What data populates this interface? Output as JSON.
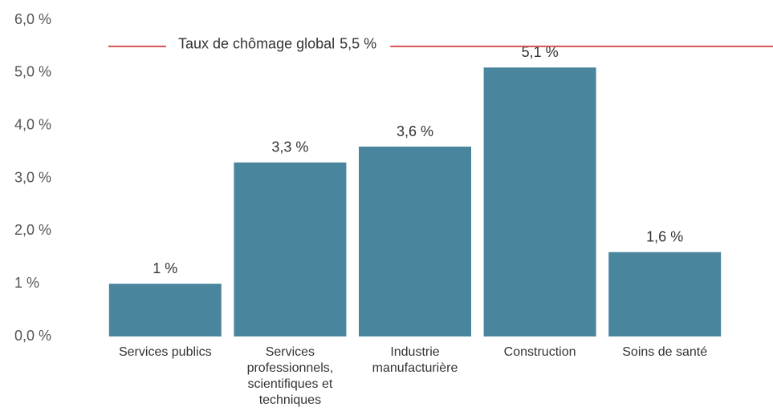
{
  "chart_data": {
    "type": "bar",
    "categories": [
      "Services publics",
      "Services professionnels, scientifiques et techniques",
      "Industrie manufacturière",
      "Construction",
      "Soins de santé"
    ],
    "values": [
      1,
      3.3,
      3.6,
      5.1,
      1.6
    ],
    "value_labels": [
      "1 %",
      "3,3 %",
      "3,6 %",
      "5,1 %",
      "1,6 %"
    ],
    "color": "#4a859e",
    "ylim": [
      0,
      6
    ],
    "yticks": [
      {
        "value": 0,
        "label": "0,0 %"
      },
      {
        "value": 1,
        "label": "1 %"
      },
      {
        "value": 2,
        "label": "2,0 %"
      },
      {
        "value": 3,
        "label": "3,0 %"
      },
      {
        "value": 4,
        "label": "4,0 %"
      },
      {
        "value": 5,
        "label": "5,0 %"
      },
      {
        "value": 6,
        "label": "6,0 %"
      }
    ],
    "reference_line": {
      "value": 5.5,
      "label": "Taux de chômage global",
      "value_label": "5,5 %",
      "color": "#d9534f"
    }
  }
}
